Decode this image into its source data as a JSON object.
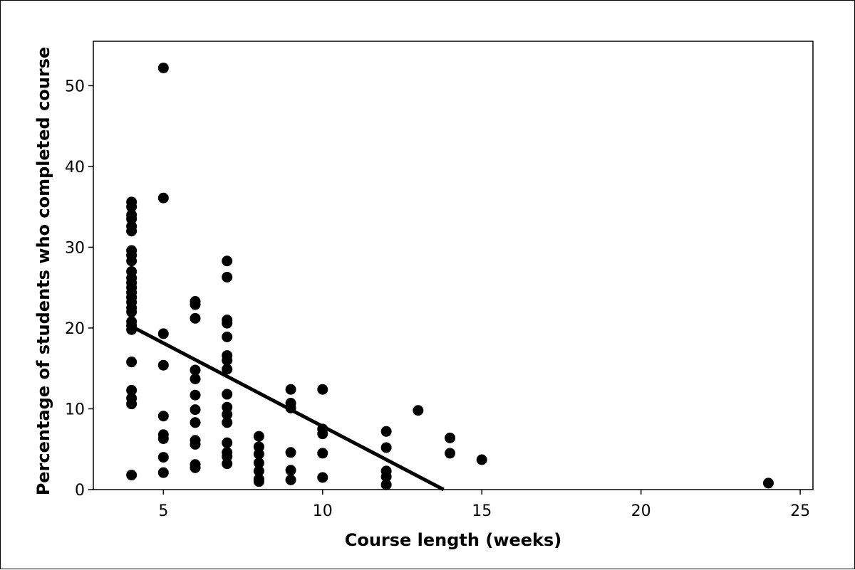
{
  "chart_data": {
    "type": "scatter",
    "title": "",
    "xlabel": "Course length (weeks)",
    "ylabel": "Percentage of students who completed course",
    "xlim": [
      2.8,
      25.4
    ],
    "ylim": [
      0,
      55.5
    ],
    "xticks": [
      5,
      10,
      15,
      20,
      25
    ],
    "yticks": [
      0,
      10,
      20,
      30,
      40,
      50
    ],
    "grid": false,
    "legend": "none",
    "colors": {
      "points": "#000000",
      "line": "#000000",
      "axes": "#000000"
    },
    "points": [
      [
        4,
        35.6
      ],
      [
        4,
        35
      ],
      [
        4,
        34
      ],
      [
        4,
        33.5
      ],
      [
        4,
        32.6
      ],
      [
        4,
        32
      ],
      [
        4,
        29.6
      ],
      [
        4,
        29
      ],
      [
        4,
        28.3
      ],
      [
        4,
        27
      ],
      [
        4,
        26.2
      ],
      [
        4,
        25.6
      ],
      [
        4,
        25
      ],
      [
        4,
        24.4
      ],
      [
        4,
        23.8
      ],
      [
        4,
        23.2
      ],
      [
        4,
        22.5
      ],
      [
        4,
        22
      ],
      [
        4,
        20.8
      ],
      [
        4,
        20.3
      ],
      [
        4,
        19.8
      ],
      [
        4,
        15.8
      ],
      [
        4,
        12.3
      ],
      [
        4,
        11.3
      ],
      [
        4,
        10.6
      ],
      [
        4,
        1.8
      ],
      [
        5,
        52.2
      ],
      [
        5,
        36.1
      ],
      [
        5,
        19.3
      ],
      [
        5,
        15.4
      ],
      [
        5,
        9.1
      ],
      [
        5,
        6.8
      ],
      [
        5,
        6.3
      ],
      [
        5,
        4
      ],
      [
        5,
        2.1
      ],
      [
        6,
        23.3
      ],
      [
        6,
        22.9
      ],
      [
        6,
        21.2
      ],
      [
        6,
        14.8
      ],
      [
        6,
        13.7
      ],
      [
        6,
        11.7
      ],
      [
        6,
        9.9
      ],
      [
        6,
        8.3
      ],
      [
        6,
        6.1
      ],
      [
        6,
        5.6
      ],
      [
        6,
        3.1
      ],
      [
        6,
        2.7
      ],
      [
        7,
        28.3
      ],
      [
        7,
        26.3
      ],
      [
        7,
        21
      ],
      [
        7,
        20.6
      ],
      [
        7,
        18.9
      ],
      [
        7,
        16.6
      ],
      [
        7,
        16
      ],
      [
        7,
        14.9
      ],
      [
        7,
        11.8
      ],
      [
        7,
        10.2
      ],
      [
        7,
        9.3
      ],
      [
        7,
        8.3
      ],
      [
        7,
        5.8
      ],
      [
        7,
        4.6
      ],
      [
        7,
        4.1
      ],
      [
        7,
        3.2
      ],
      [
        8,
        6.6
      ],
      [
        8,
        5.3
      ],
      [
        8,
        4.4
      ],
      [
        8,
        3.3
      ],
      [
        8,
        2.3
      ],
      [
        8,
        1.3
      ],
      [
        8,
        1
      ],
      [
        9,
        12.4
      ],
      [
        9,
        10.7
      ],
      [
        9,
        10.1
      ],
      [
        9,
        4.6
      ],
      [
        9,
        2.4
      ],
      [
        9,
        1.2
      ],
      [
        10,
        12.4
      ],
      [
        10,
        7.5
      ],
      [
        10,
        6.9
      ],
      [
        10,
        4.5
      ],
      [
        10,
        1.5
      ],
      [
        12,
        7.2
      ],
      [
        12,
        5.2
      ],
      [
        12,
        2.3
      ],
      [
        12,
        1.6
      ],
      [
        12,
        0.6
      ],
      [
        13,
        9.8
      ],
      [
        14,
        6.4
      ],
      [
        14,
        4.5
      ],
      [
        15,
        3.7
      ],
      [
        24,
        0.8
      ]
    ],
    "fit_line": {
      "x": [
        4,
        13.8
      ],
      "y": [
        20.2,
        0
      ]
    }
  }
}
